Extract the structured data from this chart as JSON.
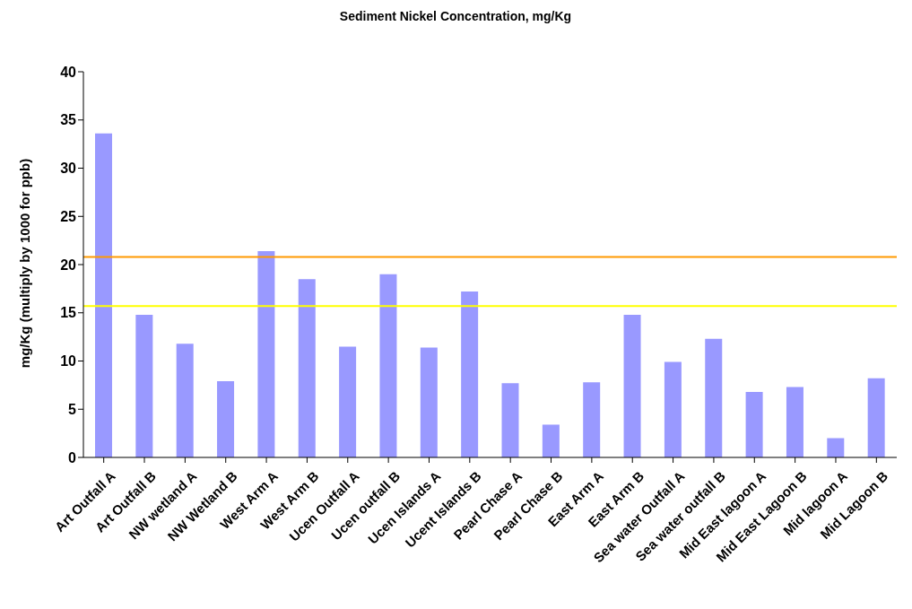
{
  "chart_data": {
    "type": "bar",
    "title": "Sediment  Nickel Concentration, mg/Kg",
    "ylabel": "mg/Kg (multiply by 1000 for ppb)",
    "categories": [
      "Art Outfall A",
      "Art Outfall B",
      "NW wetland A",
      "NW Wetland B",
      "West Arm A",
      "West Arm B",
      "Ucen Outfall A",
      "Ucen outfall B",
      "Ucen Islands A",
      "Ucent Islands B",
      "Pearl Chase A",
      "Pearl Chase B",
      "East Arm A",
      "East Arm B",
      "Sea water Outfall A",
      "Sea water outfall B",
      "Mid East lagoon A",
      "Mid East Lagoon B",
      "Mid lagoon A",
      "Mid Lagoon B"
    ],
    "values": [
      33.6,
      14.8,
      11.8,
      7.9,
      21.4,
      18.5,
      11.5,
      19.0,
      11.4,
      17.2,
      7.7,
      3.4,
      7.8,
      14.8,
      9.9,
      12.3,
      6.8,
      7.3,
      2.0,
      8.2
    ],
    "color": "#9999ff",
    "ylim": [
      0,
      40
    ],
    "yticks": [
      0,
      5,
      10,
      15,
      20,
      25,
      30,
      35,
      40
    ],
    "grid": false,
    "legend": false,
    "ref_lines": [
      {
        "axis": "y",
        "value": 20.8,
        "color": "#ff9900"
      },
      {
        "axis": "y",
        "value": 15.7,
        "color": "#ffff00"
      }
    ]
  }
}
